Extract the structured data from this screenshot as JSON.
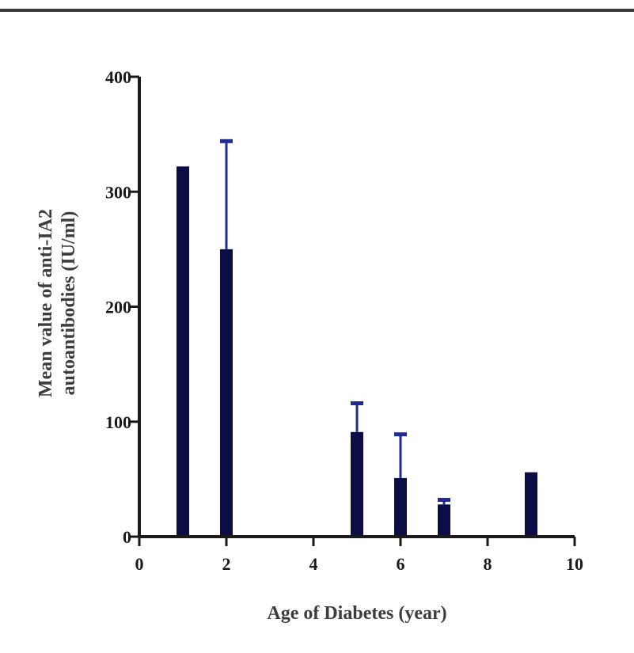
{
  "chart_data": {
    "type": "bar",
    "title": "",
    "xlabel": "Age of Diabetes (year)",
    "ylabel_line1": "Mean value of anti-IA2",
    "ylabel_line2": "autoantibodies (IU/ml)",
    "xlim": [
      0,
      10
    ],
    "ylim": [
      0,
      400
    ],
    "x_ticks": [
      0,
      2,
      4,
      6,
      8,
      10
    ],
    "y_ticks": [
      0,
      100,
      200,
      300,
      400
    ],
    "grid": false,
    "legend": "none",
    "bar_color": "#0d0d45",
    "error_color": "#1f2b8f",
    "bars": [
      {
        "x": 1,
        "value": 322,
        "error_upper": null
      },
      {
        "x": 2,
        "value": 250,
        "error_upper": 344
      },
      {
        "x": 5,
        "value": 91,
        "error_upper": 116
      },
      {
        "x": 6,
        "value": 51,
        "error_upper": 89
      },
      {
        "x": 7,
        "value": 28,
        "error_upper": 32
      },
      {
        "x": 9,
        "value": 56,
        "error_upper": null
      }
    ]
  }
}
